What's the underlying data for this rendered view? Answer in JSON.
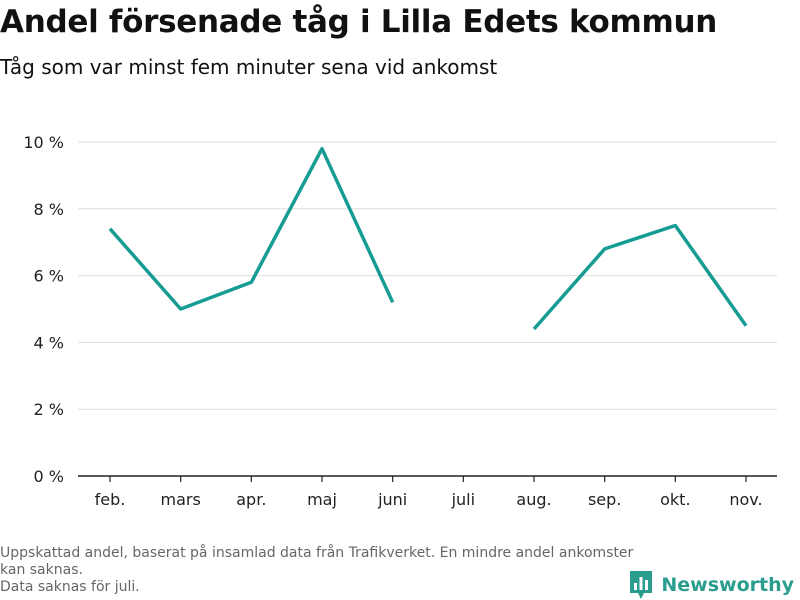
{
  "header": {
    "title": "Andel försenade tåg i Lilla Edets kommun",
    "subtitle": "Tåg som var minst fem minuter sena vid ankomst"
  },
  "footer": {
    "note_line1": "Uppskattad andel, baserat på insamlad data från Trafikverket. En mindre andel ankomster kan saknas.",
    "note_line2": "Data saknas för juli.",
    "brand": "Newsworthy"
  },
  "colors": {
    "line": "#179c93",
    "grid": "#dddddd",
    "axis": "#222222",
    "brand": "#2a9d8f"
  },
  "chart_data": {
    "type": "line",
    "categories": [
      "feb.",
      "mars",
      "apr.",
      "maj",
      "juni",
      "juli",
      "aug.",
      "sep.",
      "okt.",
      "nov."
    ],
    "series": [
      {
        "values": [
          7.4,
          5.0,
          5.8,
          9.8,
          5.2,
          null,
          4.4,
          6.8,
          7.5,
          4.5
        ]
      }
    ],
    "ylim": [
      0,
      10
    ],
    "yticks": [
      0,
      2,
      4,
      6,
      8,
      10
    ],
    "ytick_labels": [
      "0 %",
      "2 %",
      "4 %",
      "6 %",
      "8 %",
      "10 %"
    ],
    "grid": true,
    "xlabel": "",
    "ylabel": ""
  }
}
